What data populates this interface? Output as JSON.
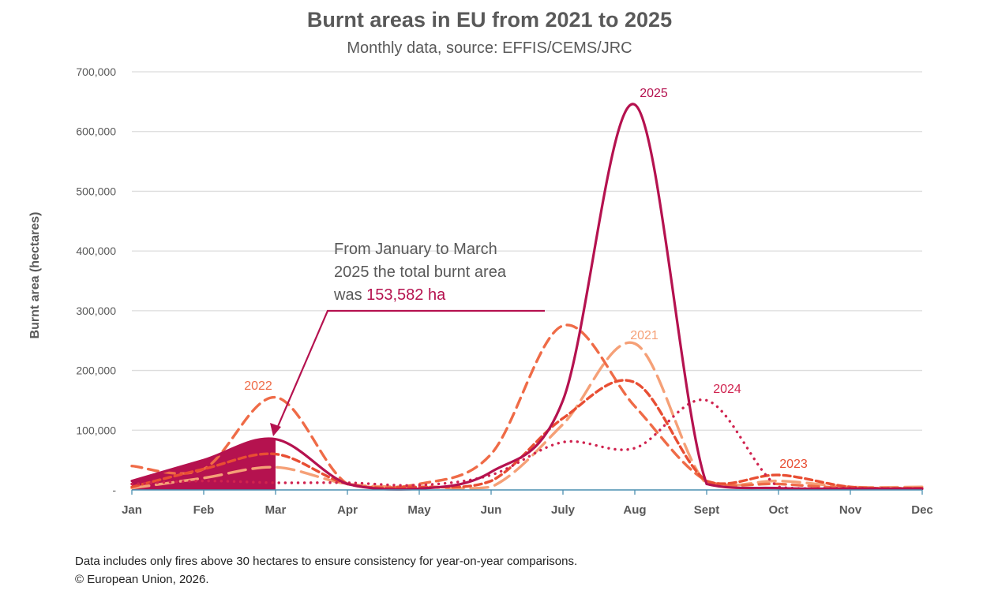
{
  "chart_data": {
    "type": "line",
    "title": "Burnt areas in EU from 2021 to 2025",
    "subtitle": "Monthly data, source: EFFIS/CEMS/JRC",
    "ylabel": "Burnt area (hectares)",
    "xlabel": "",
    "ylim": [
      0,
      700000
    ],
    "grid": true,
    "categories": [
      "Jan",
      "Feb",
      "Mar",
      "Apr",
      "May",
      "Jun",
      "July",
      "Aug",
      "Sept",
      "Oct",
      "Nov",
      "Dec"
    ],
    "yticks": [
      "-",
      "100,000",
      "200,000",
      "300,000",
      "400,000",
      "500,000",
      "600,000",
      "700,000"
    ],
    "series": [
      {
        "name": "2021",
        "color": "#f5a077",
        "dash": "long",
        "values": [
          3000,
          20000,
          38000,
          10000,
          5000,
          5000,
          110000,
          245000,
          10000,
          15000,
          5000,
          5000
        ]
      },
      {
        "name": "2022",
        "color": "#ef6b47",
        "dash": "medium",
        "values": [
          40000,
          35000,
          155000,
          10000,
          10000,
          60000,
          275000,
          140000,
          15000,
          10000,
          3000,
          3000
        ]
      },
      {
        "name": "2023",
        "color": "#e84e33",
        "dash": "short",
        "values": [
          5000,
          35000,
          60000,
          10000,
          5000,
          15000,
          120000,
          180000,
          15000,
          25000,
          5000,
          3000
        ]
      },
      {
        "name": "2024",
        "color": "#d0234f",
        "dash": "dotted",
        "values": [
          10000,
          15000,
          12000,
          12000,
          8000,
          25000,
          80000,
          70000,
          150000,
          5000,
          3000,
          2000
        ]
      },
      {
        "name": "2025",
        "color": "#b5124f",
        "dash": "solid",
        "values": [
          15000,
          50000,
          85000,
          10000,
          2000,
          30000,
          150000,
          645000,
          10000,
          3000,
          2000,
          2000
        ]
      }
    ],
    "annotation": {
      "text_a": "From January to March",
      "text_b": "2025 the total burnt area",
      "text_c": "was ",
      "value": "153,582 ha"
    }
  },
  "footer": {
    "line1": "Data includes only fires above 30 hectares to ensure consistency for year-on-year comparisons.",
    "line2": "© European Union, 2026."
  }
}
